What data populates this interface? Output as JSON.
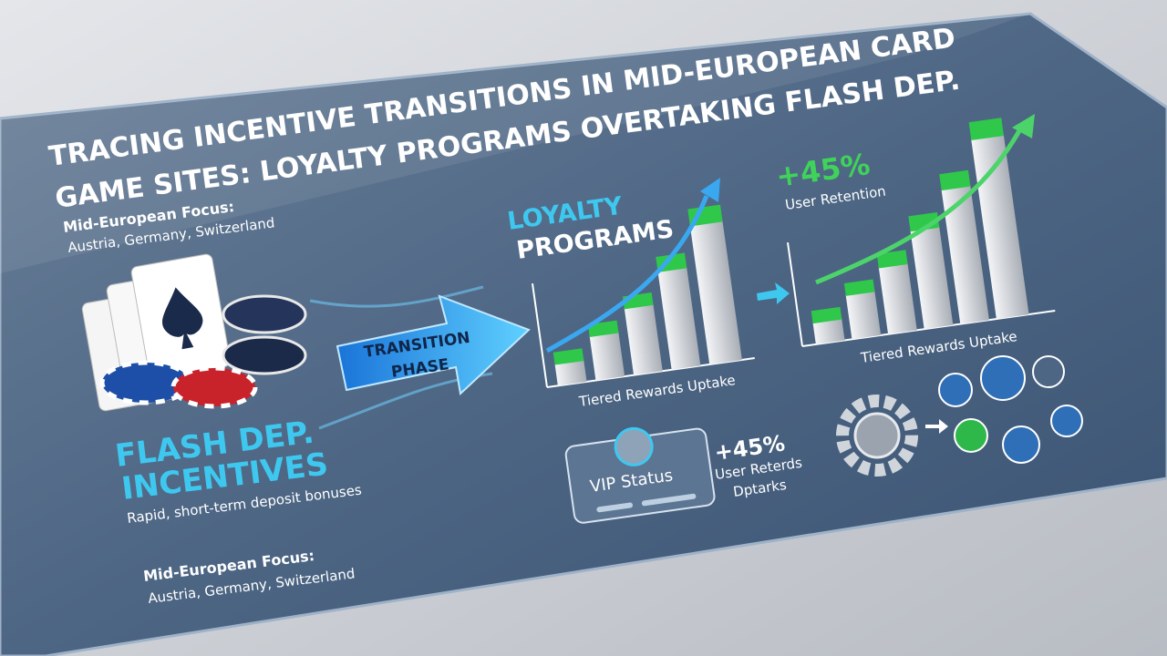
{
  "title_lines": [
    "TRACING INCENTIVE TRANSITIONS IN MID-EUROPEAN CARD",
    "GAME SITES: LOYALTY PROGRAMS OVERTAKING FLASH DEP."
  ],
  "focus_top": {
    "label": "Mid-European Focus:",
    "countries": "Austria, Germany, Switzerland"
  },
  "flash": {
    "title_lines": [
      "FLASH DEP.",
      "INCENTIVES"
    ],
    "subtitle": "Rapid, short-term deposit bonuses"
  },
  "focus_bottom": {
    "label": "Mid-European Focus:",
    "countries": "Austria, Germany, Switzerland"
  },
  "transition_lines": [
    "TRANSITION",
    "PHASE"
  ],
  "loyalty_lines": [
    "LOYALTY",
    "PROGRAMS"
  ],
  "chart_left": {
    "caption": "Tiered Rewards Uptake"
  },
  "chart_right": {
    "caption": "Tiered Rewards Uptake",
    "stat": "+45%",
    "stat_label": "User Retention"
  },
  "vip": {
    "label": "VIP Status",
    "stat": "+45%",
    "stat_label_lines": [
      "User Reterds",
      "Dptarks"
    ]
  }
}
